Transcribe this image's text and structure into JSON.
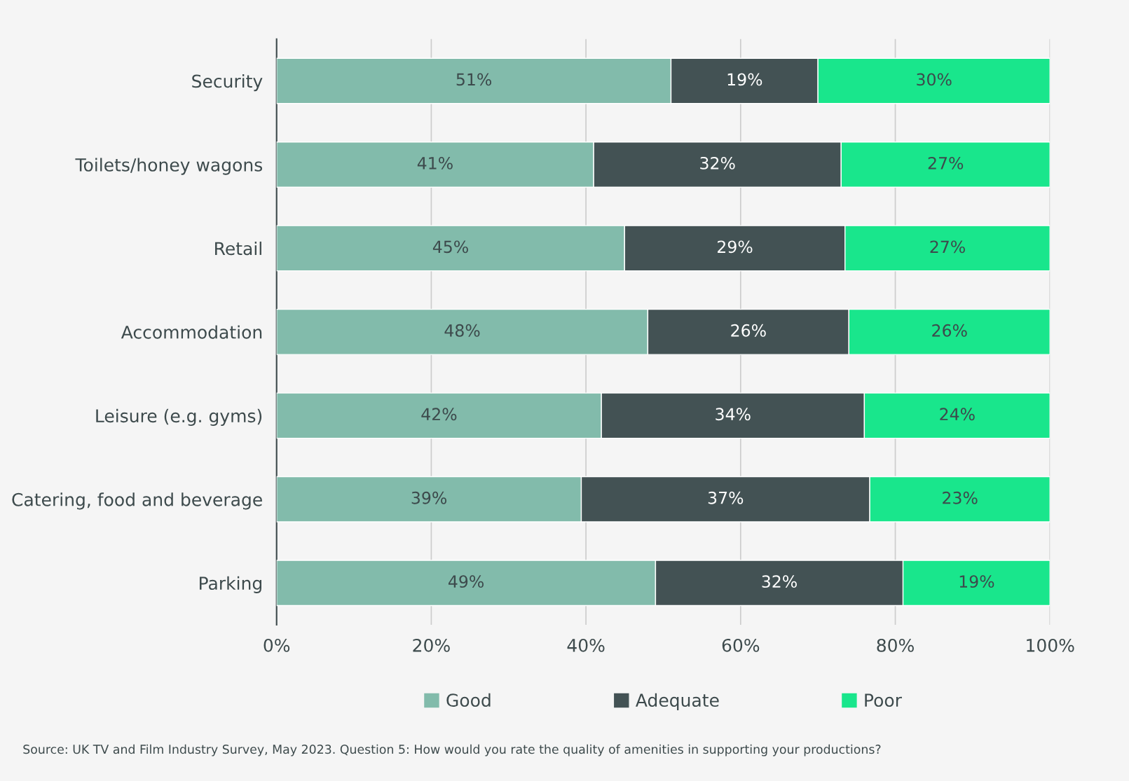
{
  "chart_data": {
    "type": "bar",
    "orientation": "horizontal",
    "stacked": true,
    "categories": [
      "Security",
      "Toilets/honey wagons",
      "Retail",
      "Accommodation",
      "Leisure (e.g. gyms)",
      "Catering, food and beverage",
      "Parking"
    ],
    "series": [
      {
        "name": "Good",
        "color": "#82bbab",
        "values": [
          51,
          41,
          45,
          48,
          42,
          39.4,
          49
        ],
        "value_labels": [
          "51%",
          "41%",
          "45%",
          "48%",
          "42%",
          "39%",
          "49%"
        ]
      },
      {
        "name": "Adequate",
        "color": "#435254",
        "values": [
          19,
          32,
          28.5,
          26,
          34,
          37.3,
          32
        ],
        "value_labels": [
          "19%",
          "32%",
          "29%",
          "26%",
          "34%",
          "37%",
          "32%"
        ]
      },
      {
        "name": "Poor",
        "color": "#19e68c",
        "values": [
          30,
          27,
          26.5,
          26,
          24,
          23.3,
          19
        ],
        "value_labels": [
          "30%",
          "27%",
          "27%",
          "26%",
          "24%",
          "23%",
          "19%"
        ]
      }
    ],
    "xlim": [
      0,
      100
    ],
    "xticks": [
      {
        "value": 0,
        "label": "0%"
      },
      {
        "value": 20,
        "label": "20%"
      },
      {
        "value": 40,
        "label": "40%"
      },
      {
        "value": 60,
        "label": "60%"
      },
      {
        "value": 80,
        "label": "80%"
      },
      {
        "value": 100,
        "label": "100%"
      }
    ],
    "grid": "x",
    "legend": "bottom",
    "annotations": [
      "Source: UK TV and Film Industry Survey, May 2023. Question 5: How would you rate the quality of amenities in supporting your productions?"
    ]
  }
}
